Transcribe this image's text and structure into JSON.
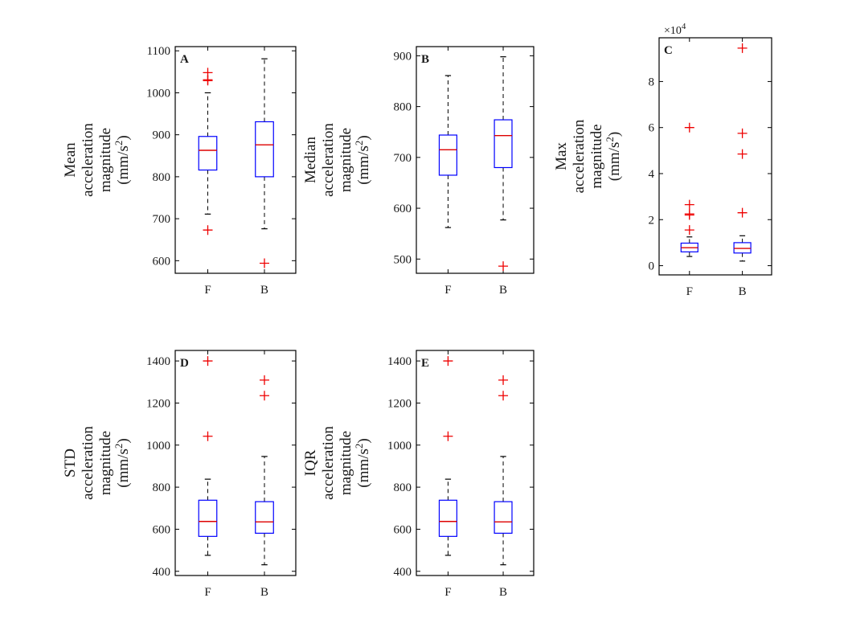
{
  "chart_data": [
    {
      "type": "box",
      "panel": "A",
      "ylabel_lines": [
        "Mean",
        "acceleration",
        "magnitude"
      ],
      "yunit": "(mm/s",
      "yunit_sup": "2",
      "yunit_end": ")",
      "categories": [
        "F",
        "B"
      ],
      "ylim": [
        570,
        1110
      ],
      "yticks": [
        600,
        700,
        800,
        900,
        1000,
        1100
      ],
      "ytick_labels": [
        "600",
        "700",
        "800",
        "900",
        "1000",
        "1100"
      ],
      "boxes": [
        {
          "category": "F",
          "whisker_low": 711,
          "q1": 816,
          "median": 863,
          "q3": 896,
          "whisker_high": 1000,
          "outliers": [
            1048,
            1031,
            1029,
            673
          ]
        },
        {
          "category": "B",
          "whisker_low": 676,
          "q1": 800,
          "median": 876,
          "q3": 931,
          "whisker_high": 1081,
          "outliers": [
            594
          ]
        }
      ]
    },
    {
      "type": "box",
      "panel": "B",
      "ylabel_lines": [
        "Median",
        "acceleration",
        "magnitude"
      ],
      "yunit": "(mm/s",
      "yunit_sup": "2",
      "yunit_end": ")",
      "categories": [
        "F",
        "B"
      ],
      "ylim": [
        472,
        918
      ],
      "yticks": [
        500,
        600,
        700,
        800,
        900
      ],
      "ytick_labels": [
        "500",
        "600",
        "700",
        "800",
        "900"
      ],
      "boxes": [
        {
          "category": "F",
          "whisker_low": 562,
          "q1": 665,
          "median": 715,
          "q3": 744,
          "whisker_high": 861,
          "outliers": []
        },
        {
          "category": "B",
          "whisker_low": 577,
          "q1": 680,
          "median": 743,
          "q3": 774,
          "whisker_high": 898,
          "outliers": [
            486
          ]
        }
      ]
    },
    {
      "type": "box",
      "panel": "C",
      "ylabel_lines": [
        "Max",
        "acceleration",
        "magnitude"
      ],
      "yunit": "(mm/s",
      "yunit_sup": "2",
      "yunit_end": ")",
      "exponent_base": "×10",
      "exponent_power": "4",
      "categories": [
        "F",
        "B"
      ],
      "ylim": [
        -0.4,
        9.9
      ],
      "yticks": [
        0,
        2,
        4,
        6,
        8
      ],
      "ytick_labels": [
        "0",
        "2",
        "4",
        "6",
        "8"
      ],
      "boxes": [
        {
          "category": "F",
          "whisker_low": 0.4,
          "q1": 0.6,
          "median": 0.78,
          "q3": 0.98,
          "whisker_high": 1.25,
          "outliers": [
            6.0,
            2.65,
            2.25,
            2.2,
            1.55
          ]
        },
        {
          "category": "B",
          "whisker_low": 0.2,
          "q1": 0.55,
          "median": 0.75,
          "q3": 1.0,
          "whisker_high": 1.3,
          "outliers": [
            9.45,
            5.75,
            4.85,
            2.3
          ]
        }
      ]
    },
    {
      "type": "box",
      "panel": "D",
      "ylabel_lines": [
        "STD",
        "acceleration",
        "magnitude"
      ],
      "yunit": "(mm/s",
      "yunit_sup": "2",
      "yunit_end": ")",
      "categories": [
        "F",
        "B"
      ],
      "ylim": [
        380,
        1450
      ],
      "yticks": [
        400,
        600,
        800,
        1000,
        1200,
        1400
      ],
      "ytick_labels": [
        "400",
        "600",
        "800",
        "1000",
        "1200",
        "1400"
      ],
      "boxes": [
        {
          "category": "F",
          "whisker_low": 476,
          "q1": 566,
          "median": 637,
          "q3": 738,
          "whisker_high": 838,
          "outliers": [
            1400,
            1042
          ]
        },
        {
          "category": "B",
          "whisker_low": 431,
          "q1": 581,
          "median": 635,
          "q3": 731,
          "whisker_high": 946,
          "outliers": [
            1309,
            1235
          ]
        }
      ]
    },
    {
      "type": "box",
      "panel": "E",
      "ylabel_lines": [
        "IQR",
        "acceleration",
        "magnitude"
      ],
      "yunit": "(mm/s",
      "yunit_sup": "2",
      "yunit_end": ")",
      "categories": [
        "F",
        "B"
      ],
      "ylim": [
        380,
        1450
      ],
      "yticks": [
        400,
        600,
        800,
        1000,
        1200,
        1400
      ],
      "ytick_labels": [
        "400",
        "600",
        "800",
        "1000",
        "1200",
        "1400"
      ],
      "boxes": [
        {
          "category": "F",
          "whisker_low": 476,
          "q1": 566,
          "median": 637,
          "q3": 738,
          "whisker_high": 838,
          "outliers": [
            1400,
            1042
          ]
        },
        {
          "category": "B",
          "whisker_low": 431,
          "q1": 581,
          "median": 635,
          "q3": 731,
          "whisker_high": 946,
          "outliers": [
            1309,
            1235
          ]
        }
      ]
    }
  ],
  "colors": {
    "box": "#0000ff",
    "median": "#dd0000",
    "outlier": "#ee0000",
    "whisker": "#000000",
    "axes": "#000000",
    "background": "#ffffff"
  }
}
